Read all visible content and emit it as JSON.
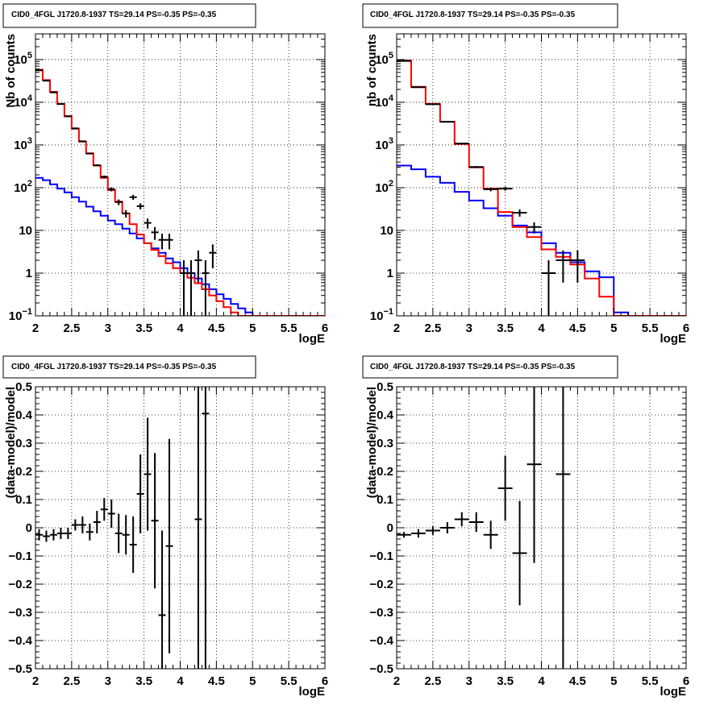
{
  "colors": {
    "model_total": "#ff0000",
    "model_background": "#0000ff",
    "data": "#000000",
    "grid": "#000000"
  },
  "chart_data": [
    {
      "type": "histogram",
      "title": "CID0_4FGL J1720.8-1937 TS=29.14 PS=-0.35 PS=-0.35",
      "xlabel": "logE",
      "ylabel": "Nb of counts",
      "xlim": [
        2,
        6
      ],
      "ylim": [
        0.1,
        400000
      ],
      "yscale": "log",
      "grid": true,
      "x_ticks": [
        "2",
        "2.5",
        "3",
        "3.5",
        "4",
        "4.5",
        "5",
        "5.5",
        "6"
      ],
      "y_ticks": [
        {
          "value": 0.1,
          "label": "10",
          "exp": "−1"
        },
        {
          "value": 1,
          "label": "1",
          "exp": ""
        },
        {
          "value": 10,
          "label": "10",
          "exp": ""
        },
        {
          "value": 100,
          "label": "10",
          "exp": "2"
        },
        {
          "value": 1000,
          "label": "10",
          "exp": "3"
        },
        {
          "value": 10000,
          "label": "10",
          "exp": "4"
        },
        {
          "value": 100000,
          "label": "10",
          "exp": "5"
        }
      ],
      "bin_edges": [
        2.0,
        2.1,
        2.2,
        2.3,
        2.4,
        2.5,
        2.6,
        2.7,
        2.8,
        2.9,
        3.0,
        3.1,
        3.2,
        3.3,
        3.4,
        3.5,
        3.6,
        3.7,
        3.8,
        3.9,
        4.0,
        4.1,
        4.2,
        4.3,
        4.4,
        4.5,
        4.6,
        4.7,
        4.8,
        4.9,
        5.0,
        5.1,
        5.2,
        5.3,
        5.4,
        5.5,
        5.6,
        5.7,
        5.8,
        5.9,
        6.0
      ],
      "series": [
        {
          "kind": "step",
          "color_key": "model_background",
          "values": [
            170,
            150,
            120,
            95,
            78,
            60,
            47,
            36,
            28,
            22,
            17,
            14,
            11,
            8.5,
            6.5,
            5.0,
            3.8,
            3.0,
            2.2,
            1.8,
            1.3,
            1.0,
            0.75,
            0.55,
            0.42,
            0.32,
            0.25,
            0.19,
            0.15,
            0.12,
            0.1,
            0.1,
            0.1,
            0.1,
            0.1,
            0.1,
            0.1,
            0.1,
            0.1,
            0.1
          ]
        },
        {
          "kind": "step",
          "color_key": "model_total",
          "values": [
            58000,
            33000,
            17500,
            9200,
            4700,
            2400,
            1200,
            640,
            330,
            170,
            88,
            47,
            25,
            14,
            8.0,
            5.0,
            3.5,
            2.5,
            1.7,
            1.3,
            1.0,
            0.78,
            0.58,
            0.42,
            0.3,
            0.22,
            0.16,
            0.12,
            0.1,
            0.1,
            0.1,
            0.1,
            0.1,
            0.1,
            0.1,
            0.1,
            0.1,
            0.1,
            0.1,
            0.1
          ]
        },
        {
          "kind": "points",
          "color_key": "data",
          "points": [
            {
              "x": 2.05,
              "y": 56000,
              "err": 240
            },
            {
              "x": 2.15,
              "y": 32000,
              "err": 180
            },
            {
              "x": 2.25,
              "y": 17000,
              "err": 130
            },
            {
              "x": 2.35,
              "y": 9100,
              "err": 95
            },
            {
              "x": 2.45,
              "y": 4700,
              "err": 69
            },
            {
              "x": 2.55,
              "y": 2450,
              "err": 50
            },
            {
              "x": 2.65,
              "y": 1220,
              "err": 35
            },
            {
              "x": 2.75,
              "y": 630,
              "err": 25
            },
            {
              "x": 2.85,
              "y": 335,
              "err": 18
            },
            {
              "x": 2.95,
              "y": 180,
              "err": 13
            },
            {
              "x": 3.05,
              "y": 92,
              "err": 10
            },
            {
              "x": 3.15,
              "y": 46,
              "err": 7
            },
            {
              "x": 3.25,
              "y": 25,
              "err": 5
            },
            {
              "x": 3.35,
              "y": 60,
              "err": 8
            },
            {
              "x": 3.45,
              "y": 37,
              "err": 6
            },
            {
              "x": 3.55,
              "y": 15,
              "err": 4
            },
            {
              "x": 3.65,
              "y": 9,
              "err": 3
            },
            {
              "x": 3.75,
              "y": 6,
              "err": 2.4
            },
            {
              "x": 3.85,
              "y": 6,
              "err": 2.4
            },
            {
              "x": 4.05,
              "y": 1,
              "err": 1
            },
            {
              "x": 4.15,
              "y": 1,
              "err": 1
            },
            {
              "x": 4.25,
              "y": 2,
              "err": 1.4
            },
            {
              "x": 4.35,
              "y": 1,
              "err": 1
            },
            {
              "x": 4.45,
              "y": 3,
              "err": 1.7
            }
          ]
        }
      ]
    },
    {
      "type": "histogram",
      "title": "CID0_4FGL J1720.8-1937 TS=29.14 PS=-0.35 PS=-0.35",
      "xlabel": "logE",
      "ylabel": "nb of counts",
      "xlim": [
        2,
        6
      ],
      "ylim": [
        0.1,
        400000
      ],
      "yscale": "log",
      "grid": true,
      "x_ticks": [
        "2",
        "2.5",
        "3",
        "3.5",
        "4",
        "4.5",
        "5",
        "5.5",
        "6"
      ],
      "y_ticks": [
        {
          "value": 0.1,
          "label": "10",
          "exp": "−1"
        },
        {
          "value": 1,
          "label": "1",
          "exp": ""
        },
        {
          "value": 10,
          "label": "10",
          "exp": ""
        },
        {
          "value": 100,
          "label": "10",
          "exp": "2"
        },
        {
          "value": 1000,
          "label": "10",
          "exp": "3"
        },
        {
          "value": 10000,
          "label": "10",
          "exp": "4"
        },
        {
          "value": 100000,
          "label": "10",
          "exp": "5"
        }
      ],
      "bin_edges": [
        2.0,
        2.2,
        2.4,
        2.6,
        2.8,
        3.0,
        3.2,
        3.4,
        3.6,
        3.8,
        4.0,
        4.2,
        4.4,
        4.6,
        4.8,
        5.0,
        5.2,
        5.4,
        5.6,
        5.8,
        6.0
      ],
      "series": [
        {
          "kind": "step",
          "color_key": "model_background",
          "values": [
            330,
            270,
            180,
            130,
            80,
            50,
            33,
            22,
            13,
            9,
            5,
            3,
            1.8,
            1.1,
            0.8,
            0.12,
            0.1,
            0.1,
            0.1,
            0.1
          ]
        },
        {
          "kind": "step",
          "color_key": "model_total",
          "values": [
            95000,
            23000,
            9200,
            3500,
            1050,
            300,
            95,
            27,
            12,
            7,
            3.6,
            2.4,
            1.6,
            0.75,
            0.28,
            0.1,
            0.1,
            0.1,
            0.1,
            0.1
          ]
        },
        {
          "kind": "points",
          "color_key": "data",
          "points": [
            {
              "x": 2.1,
              "y": 93000,
              "err": 305
            },
            {
              "x": 2.3,
              "y": 22500,
              "err": 150
            },
            {
              "x": 2.5,
              "y": 9000,
              "err": 95
            },
            {
              "x": 2.7,
              "y": 3500,
              "err": 59
            },
            {
              "x": 2.9,
              "y": 1080,
              "err": 33
            },
            {
              "x": 3.1,
              "y": 305,
              "err": 17
            },
            {
              "x": 3.3,
              "y": 92,
              "err": 10
            },
            {
              "x": 3.5,
              "y": 95,
              "err": 10
            },
            {
              "x": 3.7,
              "y": 26,
              "err": 5
            },
            {
              "x": 3.9,
              "y": 12,
              "err": 3.5
            },
            {
              "x": 4.1,
              "y": 1,
              "err": 1
            },
            {
              "x": 4.3,
              "y": 2,
              "err": 1.4
            },
            {
              "x": 4.5,
              "y": 2,
              "err": 1.4
            }
          ]
        }
      ]
    },
    {
      "type": "scatter",
      "title": "CID0_4FGL J1720.8-1937 TS=29.14 PS=-0.35 PS=-0.35",
      "xlabel": "logE",
      "ylabel": "(data-model)/model",
      "xlim": [
        2,
        6
      ],
      "ylim": [
        -0.5,
        0.5
      ],
      "yscale": "linear",
      "grid": true,
      "x_ticks": [
        "2",
        "2.5",
        "3",
        "3.5",
        "4",
        "4.5",
        "5",
        "5.5",
        "6"
      ],
      "y_ticks": [
        {
          "value": -0.5,
          "label": "−0.5"
        },
        {
          "value": -0.4,
          "label": "−0.4"
        },
        {
          "value": -0.3,
          "label": "−0.3"
        },
        {
          "value": -0.2,
          "label": "−0.2"
        },
        {
          "value": -0.1,
          "label": "−0.1"
        },
        {
          "value": 0,
          "label": "0"
        },
        {
          "value": 0.1,
          "label": "0.1"
        },
        {
          "value": 0.2,
          "label": "0.2"
        },
        {
          "value": 0.3,
          "label": "0.3"
        },
        {
          "value": 0.4,
          "label": "0.4"
        },
        {
          "value": 0.5,
          "label": "0.5"
        }
      ],
      "bin_width": 0.1,
      "series": [
        {
          "kind": "points",
          "color_key": "data",
          "points": [
            {
              "x": 2.05,
              "y": -0.025,
              "err": 0.02
            },
            {
              "x": 2.15,
              "y": -0.03,
              "err": 0.02
            },
            {
              "x": 2.25,
              "y": -0.025,
              "err": 0.02
            },
            {
              "x": 2.35,
              "y": -0.02,
              "err": 0.02
            },
            {
              "x": 2.45,
              "y": -0.02,
              "err": 0.02
            },
            {
              "x": 2.55,
              "y": 0.01,
              "err": 0.02
            },
            {
              "x": 2.65,
              "y": 0.01,
              "err": 0.03
            },
            {
              "x": 2.75,
              "y": -0.015,
              "err": 0.03
            },
            {
              "x": 2.85,
              "y": 0.02,
              "err": 0.04
            },
            {
              "x": 2.95,
              "y": 0.065,
              "err": 0.04
            },
            {
              "x": 3.05,
              "y": 0.05,
              "err": 0.05
            },
            {
              "x": 3.15,
              "y": -0.02,
              "err": 0.07
            },
            {
              "x": 3.25,
              "y": -0.025,
              "err": 0.07
            },
            {
              "x": 3.35,
              "y": -0.06,
              "err": 0.1
            },
            {
              "x": 3.45,
              "y": 0.12,
              "err": 0.14
            },
            {
              "x": 3.55,
              "y": 0.19,
              "err": 0.2
            },
            {
              "x": 3.65,
              "y": 0.025,
              "err": 0.24
            },
            {
              "x": 3.75,
              "y": -0.31,
              "err": 0.3
            },
            {
              "x": 3.85,
              "y": -0.065,
              "err": 0.38
            },
            {
              "x": 4.25,
              "y": 0.03,
              "err": 0.9
            },
            {
              "x": 4.35,
              "y": 0.405,
              "err": 1.2
            }
          ]
        }
      ]
    },
    {
      "type": "scatter",
      "title": "CID0_4FGL J1720.8-1937 TS=29.14 PS=-0.35 PS=-0.35",
      "xlabel": "logE",
      "ylabel": "(data-model)/model",
      "xlim": [
        2,
        6
      ],
      "ylim": [
        -0.5,
        0.5
      ],
      "yscale": "linear",
      "grid": true,
      "x_ticks": [
        "2",
        "2.5",
        "3",
        "3.5",
        "4",
        "4.5",
        "5",
        "5.5",
        "6"
      ],
      "y_ticks": [
        {
          "value": -0.5,
          "label": "−0.5"
        },
        {
          "value": -0.4,
          "label": "−0.4"
        },
        {
          "value": -0.3,
          "label": "−0.3"
        },
        {
          "value": -0.2,
          "label": "−0.2"
        },
        {
          "value": -0.1,
          "label": "−0.1"
        },
        {
          "value": 0,
          "label": "0"
        },
        {
          "value": 0.1,
          "label": "0.1"
        },
        {
          "value": 0.2,
          "label": "0.2"
        },
        {
          "value": 0.3,
          "label": "0.3"
        },
        {
          "value": 0.4,
          "label": "0.4"
        },
        {
          "value": 0.5,
          "label": "0.5"
        }
      ],
      "bin_width": 0.2,
      "series": [
        {
          "kind": "points",
          "color_key": "data",
          "points": [
            {
              "x": 2.1,
              "y": -0.025,
              "err": 0.01
            },
            {
              "x": 2.3,
              "y": -0.02,
              "err": 0.015
            },
            {
              "x": 2.5,
              "y": -0.01,
              "err": 0.015
            },
            {
              "x": 2.7,
              "y": 0.0,
              "err": 0.02
            },
            {
              "x": 2.9,
              "y": 0.03,
              "err": 0.025
            },
            {
              "x": 3.1,
              "y": 0.02,
              "err": 0.035
            },
            {
              "x": 3.3,
              "y": -0.025,
              "err": 0.05
            },
            {
              "x": 3.5,
              "y": 0.14,
              "err": 0.115
            },
            {
              "x": 3.7,
              "y": -0.09,
              "err": 0.185
            },
            {
              "x": 3.9,
              "y": 0.225,
              "err": 0.35
            },
            {
              "x": 4.3,
              "y": 0.19,
              "err": 1.2
            }
          ]
        }
      ]
    }
  ]
}
